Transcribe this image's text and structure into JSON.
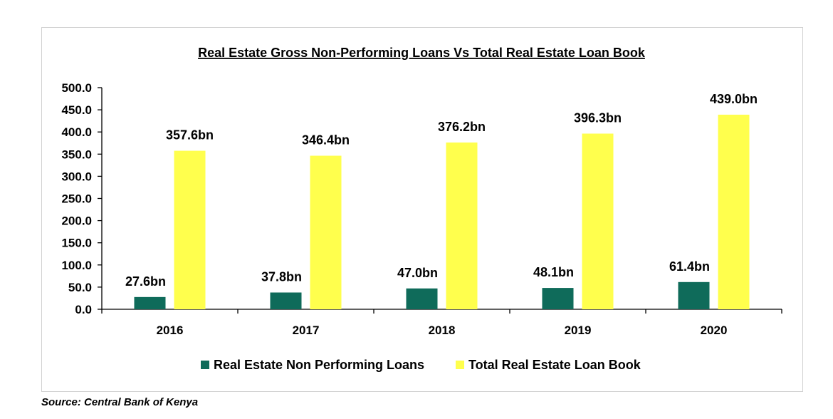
{
  "chart_data": {
    "type": "bar",
    "title": "Real Estate Gross Non-Performing Loans Vs Total Real Estate Loan Book",
    "categories": [
      "2016",
      "2017",
      "2018",
      "2019",
      "2020"
    ],
    "series": [
      {
        "name": "Real Estate Non Performing Loans",
        "values": [
          27.6,
          37.8,
          47.0,
          48.1,
          61.4
        ],
        "labels": [
          "27.6bn",
          "37.8bn",
          "47.0bn",
          "48.1bn",
          "61.4bn"
        ],
        "color": "#0f6b5a"
      },
      {
        "name": "Total Real Estate Loan Book",
        "values": [
          357.6,
          346.4,
          376.2,
          396.3,
          439.0
        ],
        "labels": [
          "357.6bn",
          "346.4bn",
          "376.2bn",
          "396.3bn",
          "439.0bn"
        ],
        "color": "#ffff4d"
      }
    ],
    "ylim": [
      0,
      500
    ],
    "yticks": [
      "0.0",
      "50.0",
      "100.0",
      "150.0",
      "200.0",
      "250.0",
      "300.0",
      "350.0",
      "400.0",
      "450.0",
      "500.0"
    ],
    "grid": false,
    "legend_position": "bottom"
  },
  "source": "Source: Central Bank of Kenya"
}
